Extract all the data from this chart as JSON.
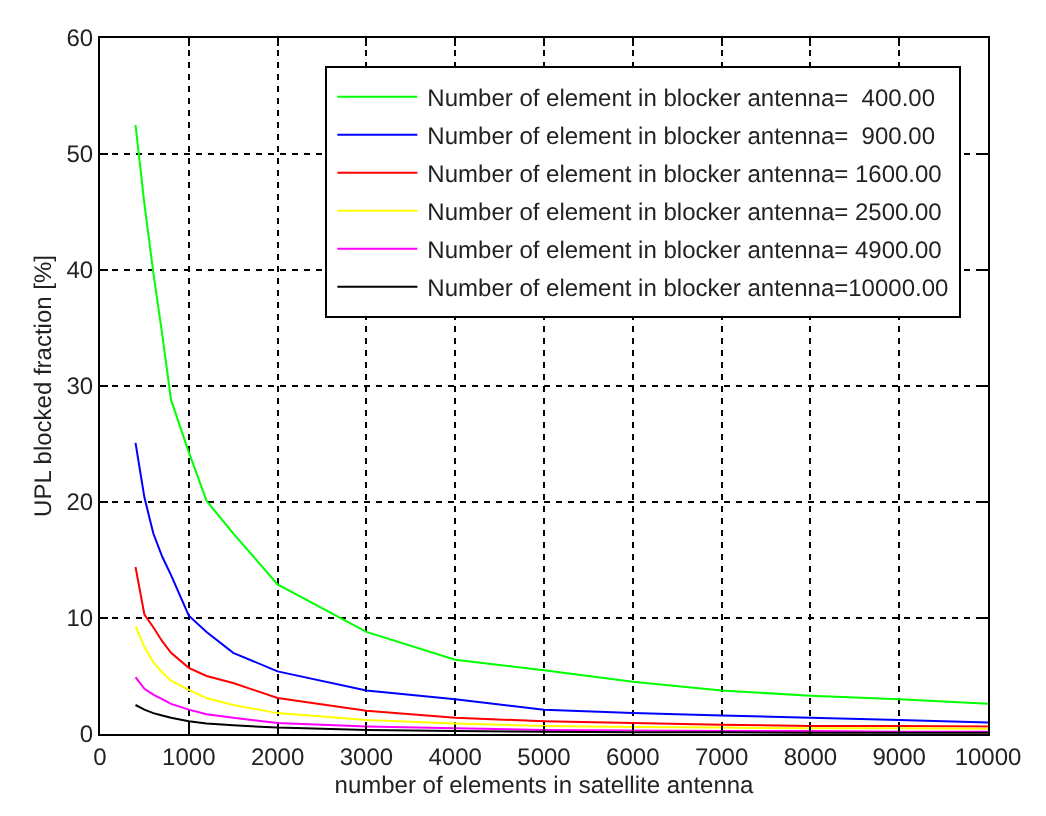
{
  "chart_data": {
    "type": "line",
    "xlabel": "number of elements in satellite antenna",
    "ylabel": "UPL blocked fraction [%]",
    "x": [
      400,
      500,
      600,
      700,
      800,
      1000,
      1200,
      1500,
      2000,
      3000,
      4000,
      5000,
      6000,
      7000,
      8000,
      9000,
      10000
    ],
    "series": [
      {
        "name": "Number of element in blocker antenna=  400.00",
        "color": "#00ff00",
        "values": [
          52.5,
          45.7,
          39.8,
          34.5,
          28.8,
          24.3,
          20.1,
          17.3,
          12.9,
          8.8,
          6.4,
          5.5,
          4.5,
          3.75,
          3.3,
          3.0,
          2.6
        ]
      },
      {
        "name": "Number of element in blocker antenna=  900.00",
        "color": "#0000ff",
        "values": [
          25.1,
          20.4,
          17.3,
          15.3,
          13.7,
          10.2,
          8.8,
          7.0,
          5.4,
          3.75,
          3.0,
          2.1,
          1.8,
          1.6,
          1.4,
          1.2,
          1.0
        ]
      },
      {
        "name": "Number of element in blocker antenna= 1600.00",
        "color": "#ff0000",
        "values": [
          14.4,
          10.3,
          9.2,
          8.0,
          7.0,
          5.7,
          5.0,
          4.4,
          3.1,
          2.0,
          1.4,
          1.1,
          0.95,
          0.8,
          0.7,
          0.7,
          0.65
        ]
      },
      {
        "name": "Number of element in blocker antenna= 2500.00",
        "color": "#ffff00",
        "values": [
          9.3,
          7.5,
          6.2,
          5.3,
          4.6,
          3.8,
          3.1,
          2.5,
          1.8,
          1.2,
          0.9,
          0.7,
          0.6,
          0.55,
          0.5,
          0.5,
          0.45
        ]
      },
      {
        "name": "Number of element in blocker antenna= 4900.00",
        "color": "#ff00ff",
        "values": [
          4.9,
          3.9,
          3.4,
          3.0,
          2.6,
          2.1,
          1.7,
          1.4,
          0.95,
          0.65,
          0.5,
          0.35,
          0.3,
          0.25,
          0.25,
          0.2,
          0.2
        ]
      },
      {
        "name": "Number of element in blocker antenna=10000.00",
        "color": "#000000",
        "values": [
          2.5,
          2.1,
          1.8,
          1.6,
          1.4,
          1.1,
          0.9,
          0.75,
          0.55,
          0.35,
          0.25,
          0.2,
          0.15,
          0.15,
          0.1,
          0.1,
          0.1
        ]
      }
    ],
    "xlim": [
      0,
      10000
    ],
    "xticks": [
      0,
      1000,
      2000,
      3000,
      4000,
      5000,
      6000,
      7000,
      8000,
      9000,
      10000
    ],
    "ylim": [
      0,
      60
    ],
    "yticks": [
      0,
      10,
      20,
      30,
      40,
      50,
      60
    ],
    "grid": true,
    "legend": "top right",
    "line_style": "solid",
    "marker": "none"
  }
}
